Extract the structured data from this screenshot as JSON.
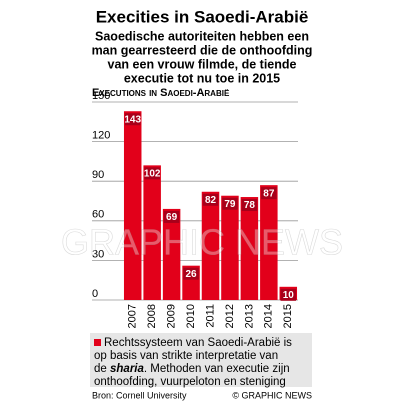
{
  "chart_data": {
    "type": "bar",
    "title": "Execities in Saoedi-Arabië",
    "subtitle": [
      "Saoedische autoriteiten hebben een",
      "man gearresteerd die de onthoofding",
      "van een vrouw filmde, de tiende",
      "executie tot nu toe in 2015"
    ],
    "y_label": "Executions in Saoedi-Arabië",
    "categories": [
      "2007",
      "2008",
      "2009",
      "2010",
      "2011",
      "2012",
      "2013",
      "2014",
      "2015"
    ],
    "values": [
      143,
      102,
      69,
      26,
      82,
      79,
      78,
      87,
      10
    ],
    "color": "#e2001a",
    "ylim": [
      0,
      150
    ],
    "yticks": [
      0,
      30,
      60,
      90,
      120,
      150
    ],
    "grid": true,
    "note": [
      "Rechtssysteem van Saoedi-Arabië is",
      "op basis van strikte interpretatie van",
      [
        "de ",
        "sharia",
        ". Methoden van executie zijn"
      ],
      "onthoofding, vuurpeloton en steniging"
    ],
    "source": "Bron: Cornell University",
    "credit": "© GRAPHIC NEWS",
    "watermark": "GRAPHIC NEWS"
  }
}
